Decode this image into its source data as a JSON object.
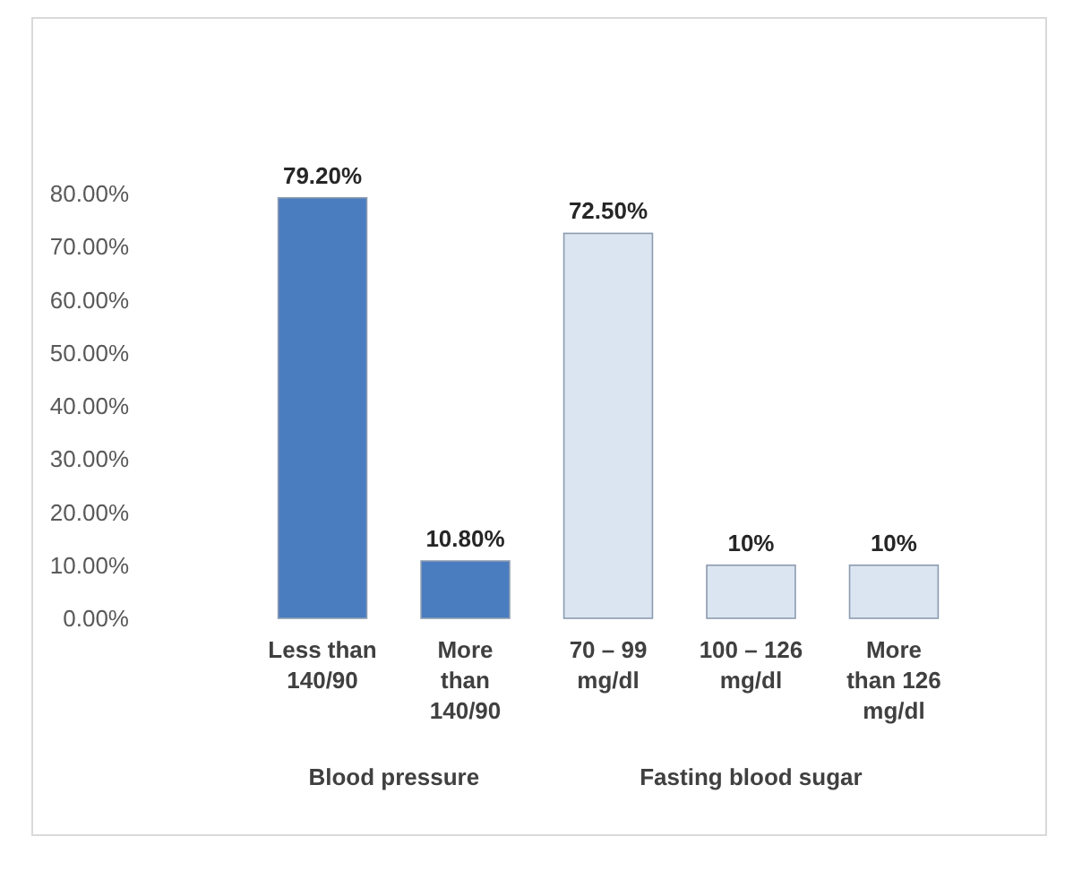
{
  "chart_data": {
    "type": "bar",
    "categories": [
      "Less than\n140/90",
      "More\nthan\n140/90",
      "70 – 99\nmg/dl",
      "100 – 126\nmg/dl",
      "More\nthan 126\nmg/dl"
    ],
    "values": [
      79.2,
      10.8,
      72.5,
      10,
      10
    ],
    "colors": [
      "#4a7cc0",
      "#4a7cc0",
      "#dbe5f1",
      "#dbe5f1",
      "#dbe5f1"
    ],
    "value_labels": [
      "79.20%",
      "10.80%",
      "72.50%",
      "10%",
      "10%"
    ],
    "ylim": [
      0,
      80
    ],
    "yticks": [
      {
        "value": 0,
        "label": "0.00%"
      },
      {
        "value": 10,
        "label": "10.00%"
      },
      {
        "value": 20,
        "label": "20.00%"
      },
      {
        "value": 30,
        "label": "30.00%"
      },
      {
        "value": 40,
        "label": "40.00%"
      },
      {
        "value": 50,
        "label": "50.00%"
      },
      {
        "value": 60,
        "label": "60.00%"
      },
      {
        "value": 70,
        "label": "70.00%"
      },
      {
        "value": 80,
        "label": "80.00%"
      }
    ],
    "annotations": [
      "Blood pressure",
      "Fasting blood sugar"
    ]
  }
}
